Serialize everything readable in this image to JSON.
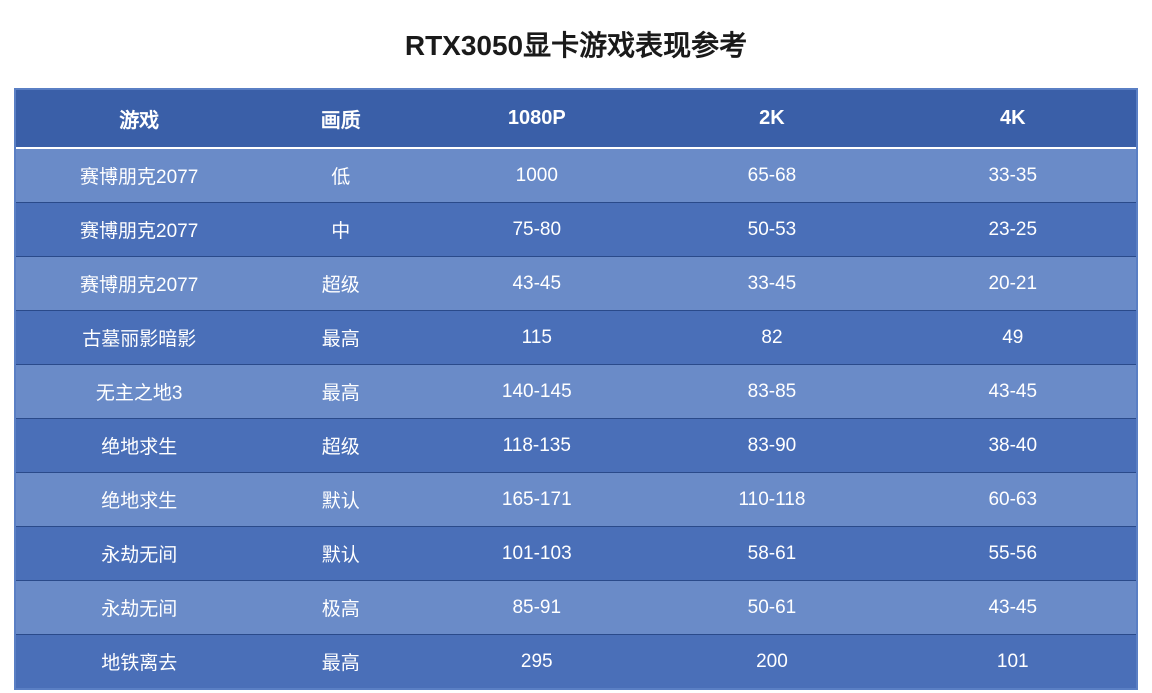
{
  "title": "RTX3050显卡游戏表现参考",
  "table": {
    "columns": [
      "游戏",
      "画质",
      "1080P",
      "2K",
      "4K"
    ],
    "column_widths": [
      "22%",
      "14%",
      "21%",
      "21%",
      "22%"
    ],
    "header_bg_color": "#3a5fa8",
    "header_text_color": "#ffffff",
    "header_fontsize": 20,
    "header_fontweight": "bold",
    "row_light_color": "#6a8bc8",
    "row_dark_color": "#4a6fb8",
    "row_text_color": "#ffffff",
    "row_fontsize": 19,
    "border_color": "#5a7fc4",
    "divider_color": "#2a4a8a",
    "header_divider_color": "#ffffff",
    "rows": [
      [
        "赛博朋克2077",
        "低",
        "1000",
        "65-68",
        "33-35"
      ],
      [
        "赛博朋克2077",
        "中",
        "75-80",
        "50-53",
        "23-25"
      ],
      [
        "赛博朋克2077",
        "超级",
        "43-45",
        "33-45",
        "20-21"
      ],
      [
        "古墓丽影暗影",
        "最高",
        "115",
        "82",
        "49"
      ],
      [
        "无主之地3",
        "最高",
        "140-145",
        "83-85",
        "43-45"
      ],
      [
        "绝地求生",
        "超级",
        "118-135",
        "83-90",
        "38-40"
      ],
      [
        "绝地求生",
        "默认",
        "165-171",
        "110-118",
        "60-63"
      ],
      [
        "永劫无间",
        "默认",
        "101-103",
        "58-61",
        "55-56"
      ],
      [
        "永劫无间",
        "极高",
        "85-91",
        "50-61",
        "43-45"
      ],
      [
        "地铁离去",
        "最高",
        "295",
        "200",
        "101"
      ]
    ]
  },
  "title_fontsize": 28,
  "title_color": "#1a1a1a",
  "background_color": "#ffffff"
}
